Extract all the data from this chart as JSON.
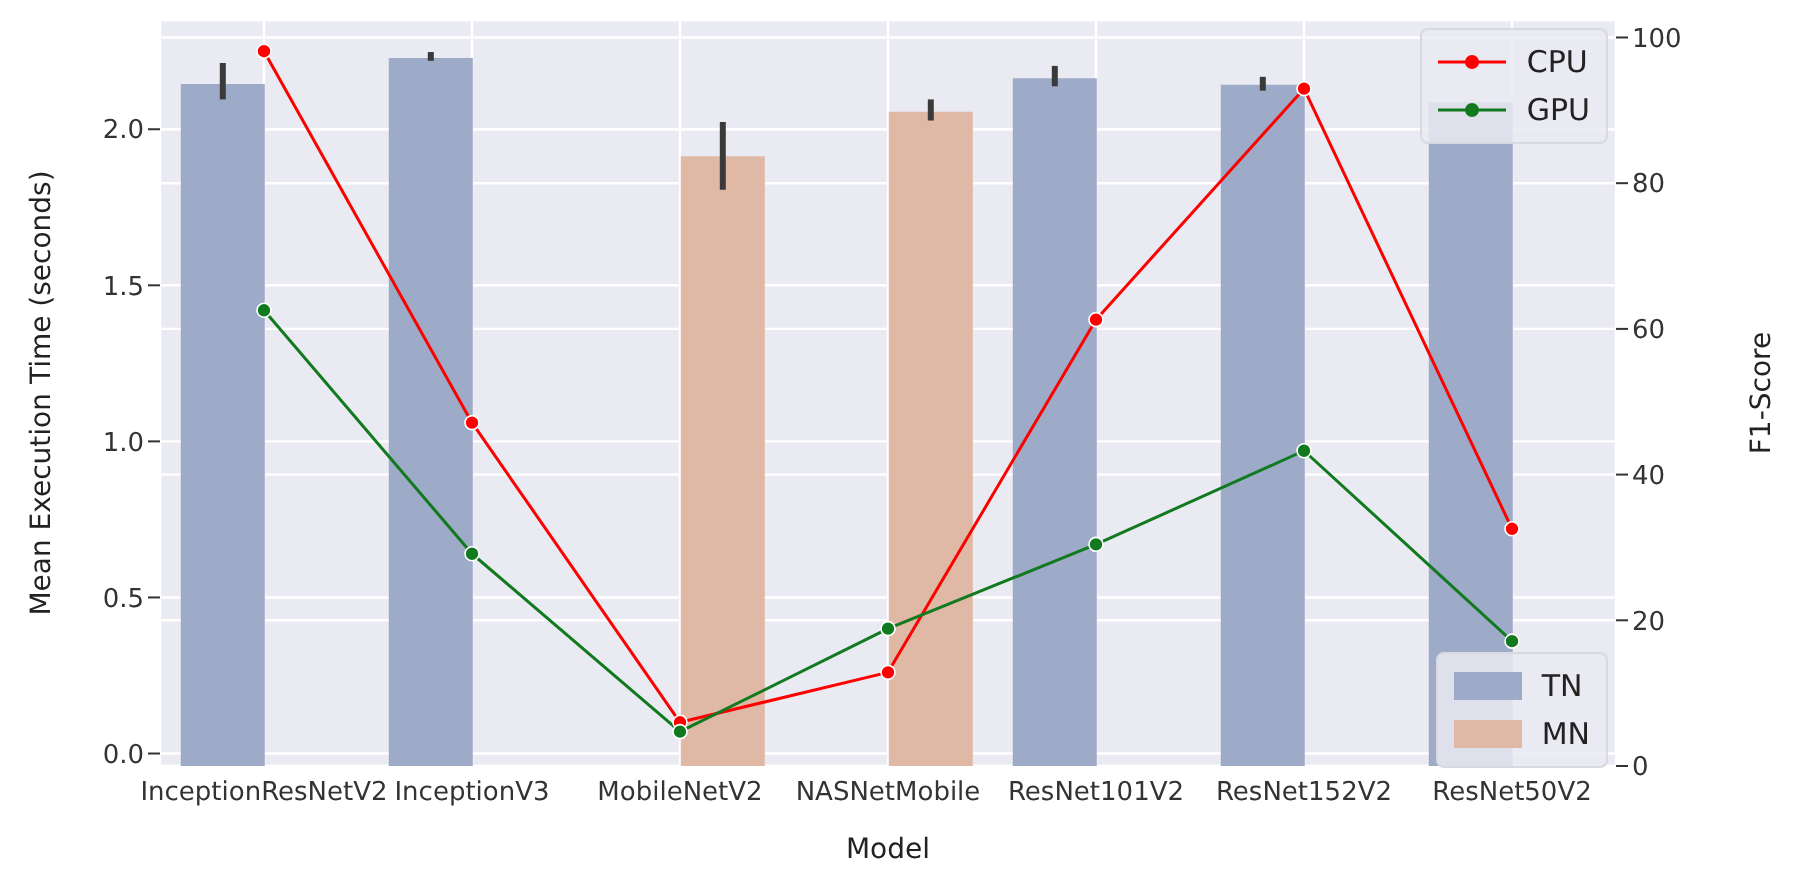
{
  "chart_data": {
    "type": "bar",
    "categories": [
      "InceptionResNetV2",
      "InceptionV3",
      "MobileNetV2",
      "NASNetMobile",
      "ResNet101V2",
      "ResNet152V2",
      "ResNet50V2"
    ],
    "xlabel": "Model",
    "ylabel": "Mean Execution Time (seconds)",
    "y2label": "F1-Score",
    "series": [
      {
        "name": "TN",
        "axis": "y2",
        "color": "#9dabc8",
        "values": [
          93.6,
          97.2,
          null,
          null,
          94.4,
          93.5,
          91.1
        ],
        "errors": [
          [
            91.5,
            96.5
          ],
          [
            96.8,
            98.0
          ],
          null,
          null,
          [
            93.3,
            96.1
          ],
          [
            92.7,
            94.6
          ],
          null
        ]
      },
      {
        "name": "MN",
        "axis": "y2",
        "color": "#dfb9a6",
        "values": [
          null,
          null,
          83.7,
          89.8,
          null,
          null,
          null
        ],
        "errors": [
          null,
          null,
          [
            79.1,
            88.4
          ],
          [
            88.6,
            91.5
          ],
          null,
          null,
          null
        ]
      },
      {
        "name": "CPU",
        "type": "line",
        "axis": "y",
        "color": "#ff0000",
        "values": [
          2.25,
          1.06,
          0.1,
          0.26,
          1.39,
          2.13,
          0.72
        ]
      },
      {
        "name": "GPU",
        "type": "line",
        "axis": "y",
        "color": "#117a1f",
        "values": [
          1.42,
          0.64,
          0.07,
          0.4,
          0.67,
          0.97,
          0.36
        ]
      }
    ],
    "ylim": [
      -0.04,
      2.35
    ],
    "yticks": [
      {
        "value": 0,
        "label": "0.0"
      },
      {
        "value": 0.5,
        "label": "0.5"
      },
      {
        "value": 1,
        "label": "1.0"
      },
      {
        "value": 1.5,
        "label": "1.5"
      },
      {
        "value": 2,
        "label": "2.0"
      }
    ],
    "y2lim": [
      0,
      102.4
    ],
    "y2ticks": [
      0,
      20,
      40,
      60,
      80,
      100
    ],
    "grid": true,
    "legend": "right",
    "marker": "circle",
    "line_style": "solid"
  }
}
